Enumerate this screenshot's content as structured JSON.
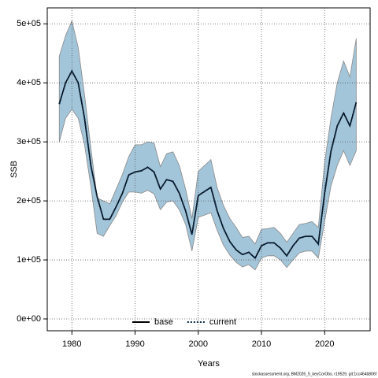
{
  "chart_data": {
    "type": "line",
    "xlabel": "Years",
    "ylabel": "SSB",
    "footnote": "stockassessment.org, BM2026_5_keyCorObs, r19529, git:1cc464b806f",
    "x": [
      1978,
      1979,
      1980,
      1981,
      1982,
      1983,
      1984,
      1985,
      1986,
      1987,
      1988,
      1989,
      1990,
      1991,
      1992,
      1993,
      1994,
      1995,
      1996,
      1997,
      1998,
      1999,
      2000,
      2001,
      2002,
      2003,
      2004,
      2005,
      2006,
      2007,
      2008,
      2009,
      2010,
      2011,
      2012,
      2013,
      2014,
      2015,
      2016,
      2017,
      2018,
      2019,
      2020,
      2021,
      2022,
      2023,
      2024,
      2025
    ],
    "series": [
      {
        "name": "base",
        "color": "#000000",
        "style": "solid",
        "values": [
          364000,
          400000,
          420000,
          400000,
          340000,
          260000,
          207000,
          169000,
          169000,
          190000,
          213000,
          244000,
          249000,
          251000,
          257000,
          249000,
          220000,
          236000,
          233000,
          213000,
          183000,
          143000,
          209000,
          216000,
          223000,
          183000,
          153000,
          131000,
          117000,
          109000,
          113000,
          103000,
          124000,
          129000,
          129000,
          120000,
          107000,
          124000,
          137000,
          140000,
          140000,
          127000,
          213000,
          284000,
          327000,
          349000,
          327000,
          367000
        ]
      },
      {
        "name": "current",
        "color": "#0a2a4a",
        "style": "dotted",
        "band_color": "#a3c5d9",
        "values": [
          364000,
          400000,
          420000,
          400000,
          340000,
          260000,
          207000,
          169000,
          169000,
          190000,
          213000,
          244000,
          249000,
          251000,
          257000,
          249000,
          220000,
          236000,
          233000,
          213000,
          183000,
          143000,
          209000,
          216000,
          223000,
          183000,
          153000,
          131000,
          117000,
          109000,
          113000,
          103000,
          124000,
          129000,
          129000,
          120000,
          107000,
          124000,
          137000,
          140000,
          140000,
          127000,
          213000,
          284000,
          327000,
          349000,
          327000,
          367000
        ],
        "lower": [
          300000,
          340000,
          355000,
          340000,
          295000,
          225000,
          145000,
          140000,
          158000,
          175000,
          198000,
          215000,
          215000,
          213000,
          218000,
          212000,
          185000,
          198000,
          200000,
          185000,
          160000,
          115000,
          172000,
          176000,
          180000,
          150000,
          125000,
          108000,
          96000,
          88000,
          92000,
          83000,
          103000,
          107000,
          107000,
          100000,
          87000,
          100000,
          112000,
          115000,
          115000,
          103000,
          165000,
          225000,
          260000,
          285000,
          260000,
          285000
        ],
        "upper": [
          445000,
          480000,
          505000,
          460000,
          380000,
          290000,
          205000,
          200000,
          195000,
          220000,
          245000,
          275000,
          295000,
          295000,
          300000,
          298000,
          258000,
          280000,
          283000,
          260000,
          220000,
          170000,
          250000,
          260000,
          270000,
          222000,
          192000,
          170000,
          155000,
          138000,
          140000,
          127000,
          152000,
          153000,
          155000,
          145000,
          130000,
          145000,
          160000,
          162000,
          165000,
          155000,
          265000,
          340000,
          400000,
          437000,
          410000,
          475000
        ]
      }
    ],
    "xlim": [
      1976.1,
      2027.2
    ],
    "ylim": [
      -20000,
      527000
    ],
    "xticks": [
      1980,
      1990,
      2000,
      2010,
      2020
    ],
    "yticks": [
      {
        "value": 0,
        "label": "0e+00"
      },
      {
        "value": 100000,
        "label": "1e+05"
      },
      {
        "value": 200000,
        "label": "2e+05"
      },
      {
        "value": 300000,
        "label": "3e+05"
      },
      {
        "value": 400000,
        "label": "4e+05"
      },
      {
        "value": 500000,
        "label": "5e+05"
      }
    ],
    "grid": true,
    "legend": "bottom"
  }
}
